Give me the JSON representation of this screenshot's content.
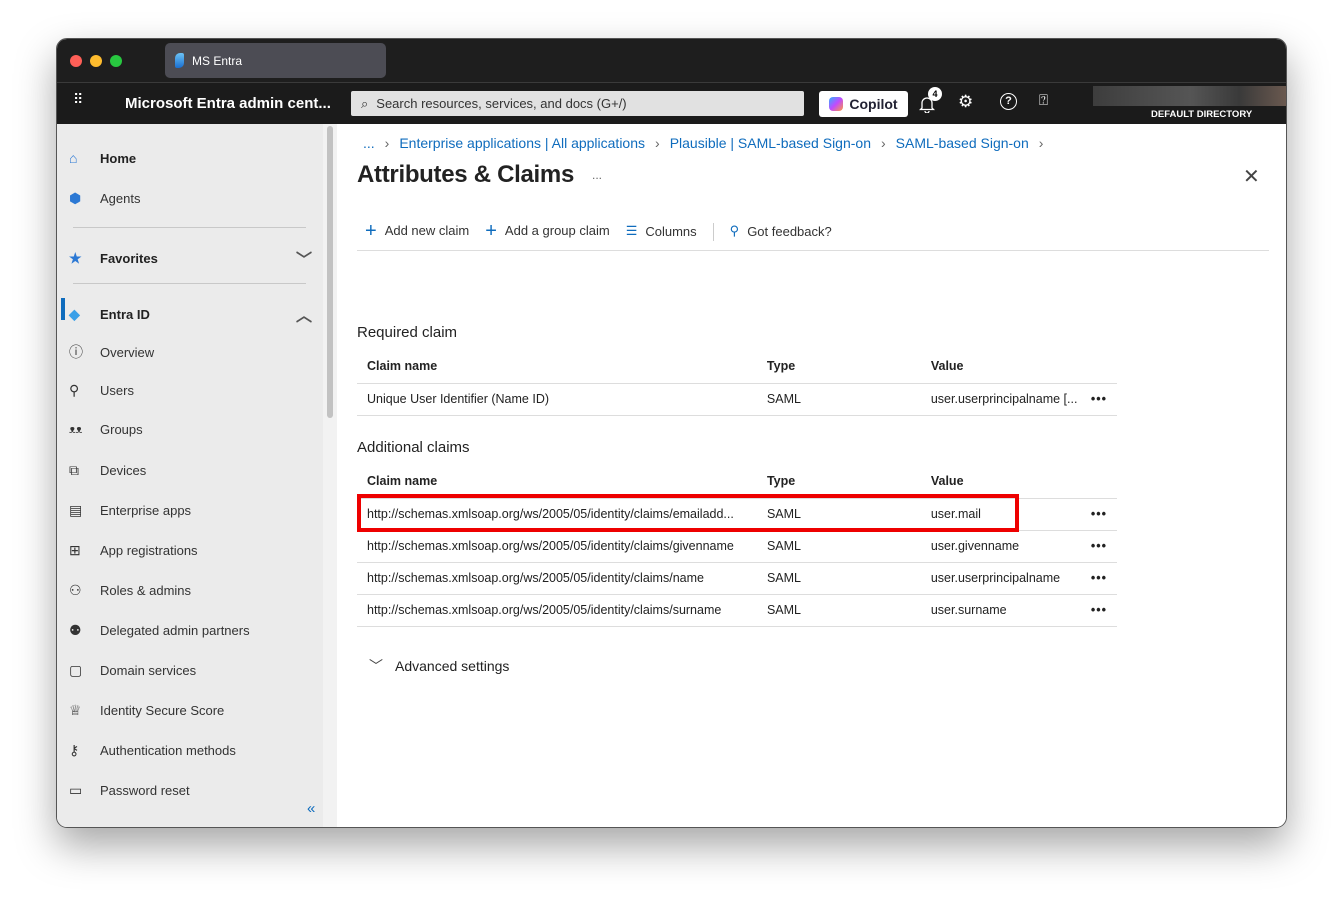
{
  "browser": {
    "tab_title": "MS Entra"
  },
  "topnav": {
    "app_title": "Microsoft Entra admin cent...",
    "search_placeholder": "Search resources, services, and docs (G+/)",
    "copilot_label": "Copilot",
    "notification_count": "4",
    "directory_label": "DEFAULT DIRECTORY"
  },
  "sidebar": {
    "items": [
      {
        "label": "Home",
        "icon": "home-icon"
      },
      {
        "label": "Agents",
        "icon": "agents-icon"
      },
      {
        "label": "Favorites",
        "icon": "star-icon"
      },
      {
        "label": "Entra ID",
        "icon": "entra-icon"
      },
      {
        "label": "Overview",
        "icon": "info-icon"
      },
      {
        "label": "Users",
        "icon": "user-icon"
      },
      {
        "label": "Groups",
        "icon": "groups-icon"
      },
      {
        "label": "Devices",
        "icon": "devices-icon"
      },
      {
        "label": "Enterprise apps",
        "icon": "enterprise-apps-icon"
      },
      {
        "label": "App registrations",
        "icon": "app-registrations-icon"
      },
      {
        "label": "Roles & admins",
        "icon": "roles-icon"
      },
      {
        "label": "Delegated admin partners",
        "icon": "partners-icon"
      },
      {
        "label": "Domain services",
        "icon": "domain-icon"
      },
      {
        "label": "Identity Secure Score",
        "icon": "trophy-icon"
      },
      {
        "label": "Authentication methods",
        "icon": "auth-icon"
      },
      {
        "label": "Password reset",
        "icon": "password-icon"
      }
    ]
  },
  "breadcrumb": [
    "...",
    "Enterprise applications | All applications",
    "Plausible | SAML-based Sign-on",
    "SAML-based Sign-on"
  ],
  "page": {
    "title": "Attributes & Claims",
    "more": "...",
    "toolbar": {
      "add_claim": "Add new claim",
      "add_group_claim": "Add a group claim",
      "columns": "Columns",
      "feedback": "Got feedback?"
    },
    "required": {
      "heading": "Required claim",
      "headers": [
        "Claim name",
        "Type",
        "Value"
      ],
      "rows": [
        {
          "name": "Unique User Identifier (Name ID)",
          "type": "SAML",
          "value": "user.userprincipalname [..."
        }
      ]
    },
    "additional": {
      "heading": "Additional claims",
      "headers": [
        "Claim name",
        "Type",
        "Value"
      ],
      "rows": [
        {
          "name": "http://schemas.xmlsoap.org/ws/2005/05/identity/claims/emailadd...",
          "type": "SAML",
          "value": "user.mail"
        },
        {
          "name": "http://schemas.xmlsoap.org/ws/2005/05/identity/claims/givenname",
          "type": "SAML",
          "value": "user.givenname"
        },
        {
          "name": "http://schemas.xmlsoap.org/ws/2005/05/identity/claims/name",
          "type": "SAML",
          "value": "user.userprincipalname"
        },
        {
          "name": "http://schemas.xmlsoap.org/ws/2005/05/identity/claims/surname",
          "type": "SAML",
          "value": "user.surname"
        }
      ]
    },
    "advanced": "Advanced settings",
    "row_more": "•••"
  },
  "colors": {
    "accent": "#0f6cbd",
    "highlight": "#ee0000"
  }
}
